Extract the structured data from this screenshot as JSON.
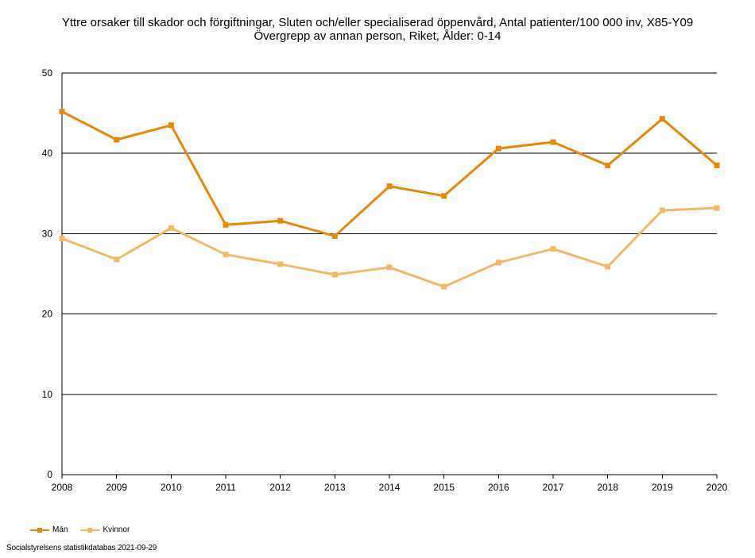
{
  "chart_data": {
    "type": "line",
    "title_line1": "Yttre orsaker till skador och förgiftningar, Sluten och/eller specialiserad öppenvård, Antal patienter/100 000 inv, X85-Y09",
    "title_line2": "Övergrepp av annan person, Riket, Ålder: 0-14",
    "x": [
      "2008",
      "2009",
      "2010",
      "2011",
      "2012",
      "2013",
      "2014",
      "2015",
      "2016",
      "2017",
      "2018",
      "2019",
      "2020"
    ],
    "ylim": [
      0,
      50
    ],
    "yticks": [
      0,
      10,
      20,
      30,
      40,
      50
    ],
    "grid": true,
    "legend_position": "bottom-left",
    "series": [
      {
        "name": "Män",
        "color": "#e8890c",
        "values": [
          45.2,
          41.7,
          43.5,
          31.1,
          31.6,
          29.7,
          35.9,
          34.7,
          40.6,
          41.4,
          38.5,
          44.3,
          38.5
        ]
      },
      {
        "name": "Kvinnor",
        "color": "#f2b96b",
        "values": [
          29.4,
          26.8,
          30.7,
          27.4,
          26.2,
          24.9,
          25.8,
          23.4,
          26.4,
          28.1,
          25.9,
          32.9,
          33.2
        ]
      }
    ]
  },
  "source": "Socialstyrelsens statistikdatabas 2021-09-29"
}
